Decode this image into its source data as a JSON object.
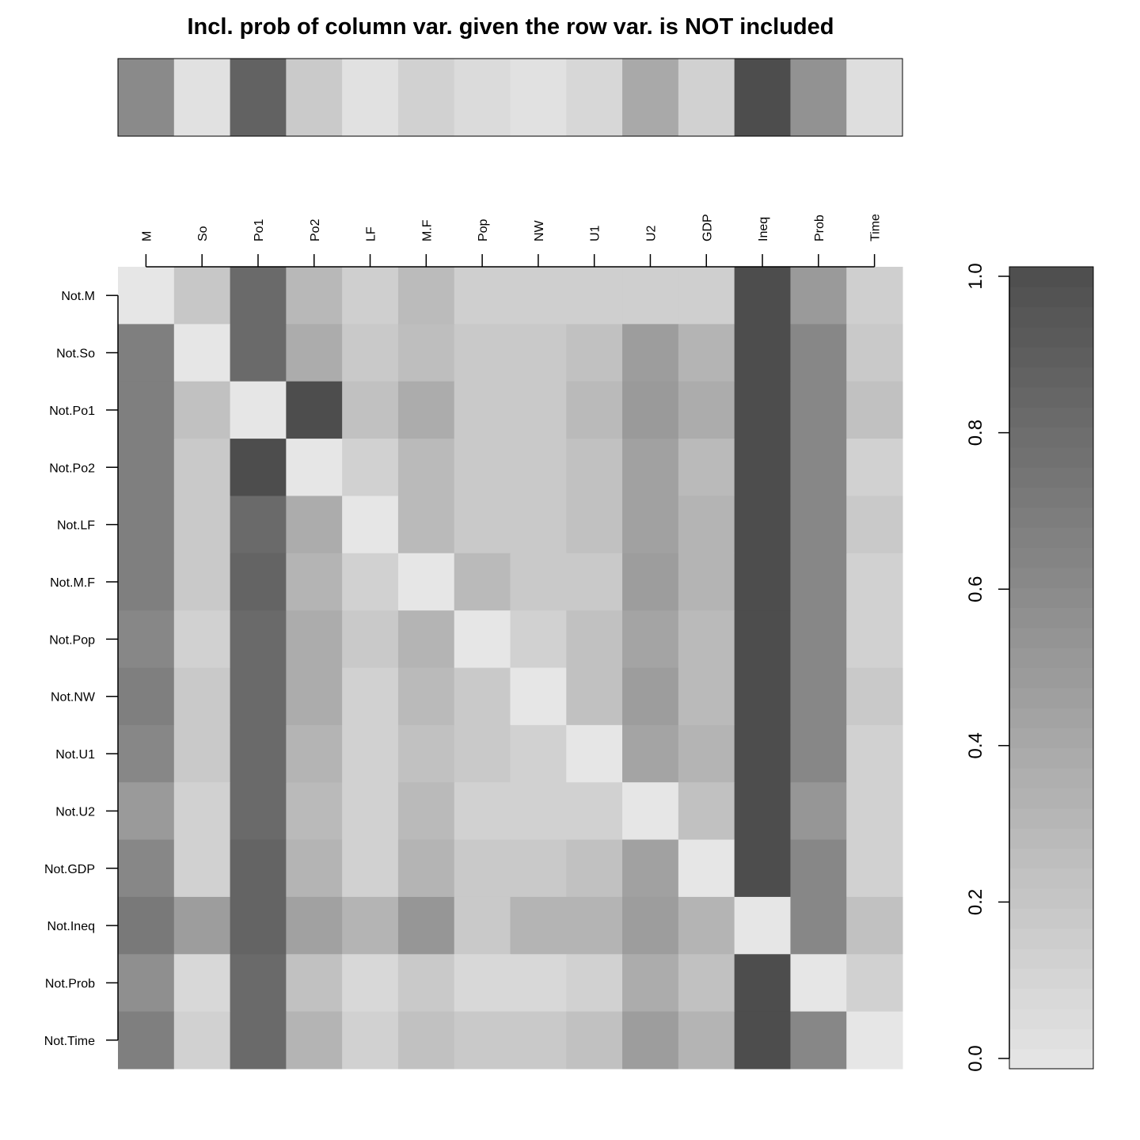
{
  "chart_data": {
    "type": "heatmap",
    "title": "Incl. prob of column var. given the row var. is NOT included",
    "columns": [
      "M",
      "So",
      "Po1",
      "Po2",
      "LF",
      "M.F",
      "Pop",
      "NW",
      "U1",
      "U2",
      "GDP",
      "Ineq",
      "Prob",
      "Time"
    ],
    "rows": [
      "Not.M",
      "Not.So",
      "Not.Po1",
      "Not.Po2",
      "Not.LF",
      "Not.M.F",
      "Not.Pop",
      "Not.NW",
      "Not.U1",
      "Not.U2",
      "Not.GDP",
      "Not.Ineq",
      "Not.Prob",
      "Not.Time"
    ],
    "marginal_inclusion": [
      0.6,
      0.03,
      0.86,
      0.18,
      0.03,
      0.14,
      0.07,
      0.03,
      0.1,
      0.4,
      0.14,
      1.0,
      0.55,
      0.05
    ],
    "matrix": [
      [
        0.0,
        0.2,
        0.81,
        0.3,
        0.15,
        0.28,
        0.15,
        0.15,
        0.15,
        0.15,
        0.15,
        1.0,
        0.5,
        0.15
      ],
      [
        0.67,
        0.0,
        0.81,
        0.38,
        0.19,
        0.26,
        0.19,
        0.19,
        0.24,
        0.48,
        0.33,
        1.0,
        0.62,
        0.19
      ],
      [
        0.67,
        0.24,
        0.0,
        1.0,
        0.24,
        0.38,
        0.19,
        0.19,
        0.29,
        0.5,
        0.38,
        1.0,
        0.62,
        0.24
      ],
      [
        0.67,
        0.19,
        1.0,
        0.0,
        0.14,
        0.29,
        0.19,
        0.19,
        0.24,
        0.45,
        0.29,
        1.0,
        0.62,
        0.14
      ],
      [
        0.67,
        0.19,
        0.81,
        0.38,
        0.0,
        0.29,
        0.19,
        0.19,
        0.24,
        0.45,
        0.33,
        1.0,
        0.62,
        0.19
      ],
      [
        0.67,
        0.19,
        0.85,
        0.33,
        0.14,
        0.0,
        0.29,
        0.19,
        0.19,
        0.48,
        0.33,
        1.0,
        0.62,
        0.14
      ],
      [
        0.62,
        0.14,
        0.81,
        0.38,
        0.19,
        0.33,
        0.0,
        0.14,
        0.24,
        0.43,
        0.29,
        1.0,
        0.62,
        0.14
      ],
      [
        0.67,
        0.19,
        0.81,
        0.38,
        0.14,
        0.29,
        0.19,
        0.0,
        0.24,
        0.48,
        0.29,
        1.0,
        0.62,
        0.19
      ],
      [
        0.62,
        0.19,
        0.81,
        0.33,
        0.14,
        0.24,
        0.19,
        0.14,
        0.0,
        0.43,
        0.33,
        1.0,
        0.62,
        0.14
      ],
      [
        0.5,
        0.14,
        0.81,
        0.29,
        0.14,
        0.29,
        0.14,
        0.14,
        0.14,
        0.0,
        0.24,
        1.0,
        0.52,
        0.14
      ],
      [
        0.62,
        0.14,
        0.85,
        0.33,
        0.14,
        0.33,
        0.19,
        0.19,
        0.24,
        0.45,
        0.0,
        1.0,
        0.62,
        0.14
      ],
      [
        0.71,
        0.48,
        0.85,
        0.45,
        0.33,
        0.52,
        0.19,
        0.33,
        0.33,
        0.48,
        0.33,
        0.0,
        0.62,
        0.24
      ],
      [
        0.57,
        0.09,
        0.81,
        0.24,
        0.09,
        0.19,
        0.09,
        0.09,
        0.14,
        0.38,
        0.24,
        1.0,
        0.0,
        0.14
      ],
      [
        0.67,
        0.14,
        0.81,
        0.33,
        0.14,
        0.24,
        0.19,
        0.19,
        0.24,
        0.48,
        0.33,
        1.0,
        0.62,
        0.0
      ]
    ],
    "colorbar": {
      "range": [
        0,
        1
      ],
      "ticks": [
        "0.0",
        "0.2",
        "0.4",
        "0.6",
        "0.8",
        "1.0"
      ],
      "low_color": "#e6e6e6",
      "high_color": "#4d4d4d"
    }
  }
}
